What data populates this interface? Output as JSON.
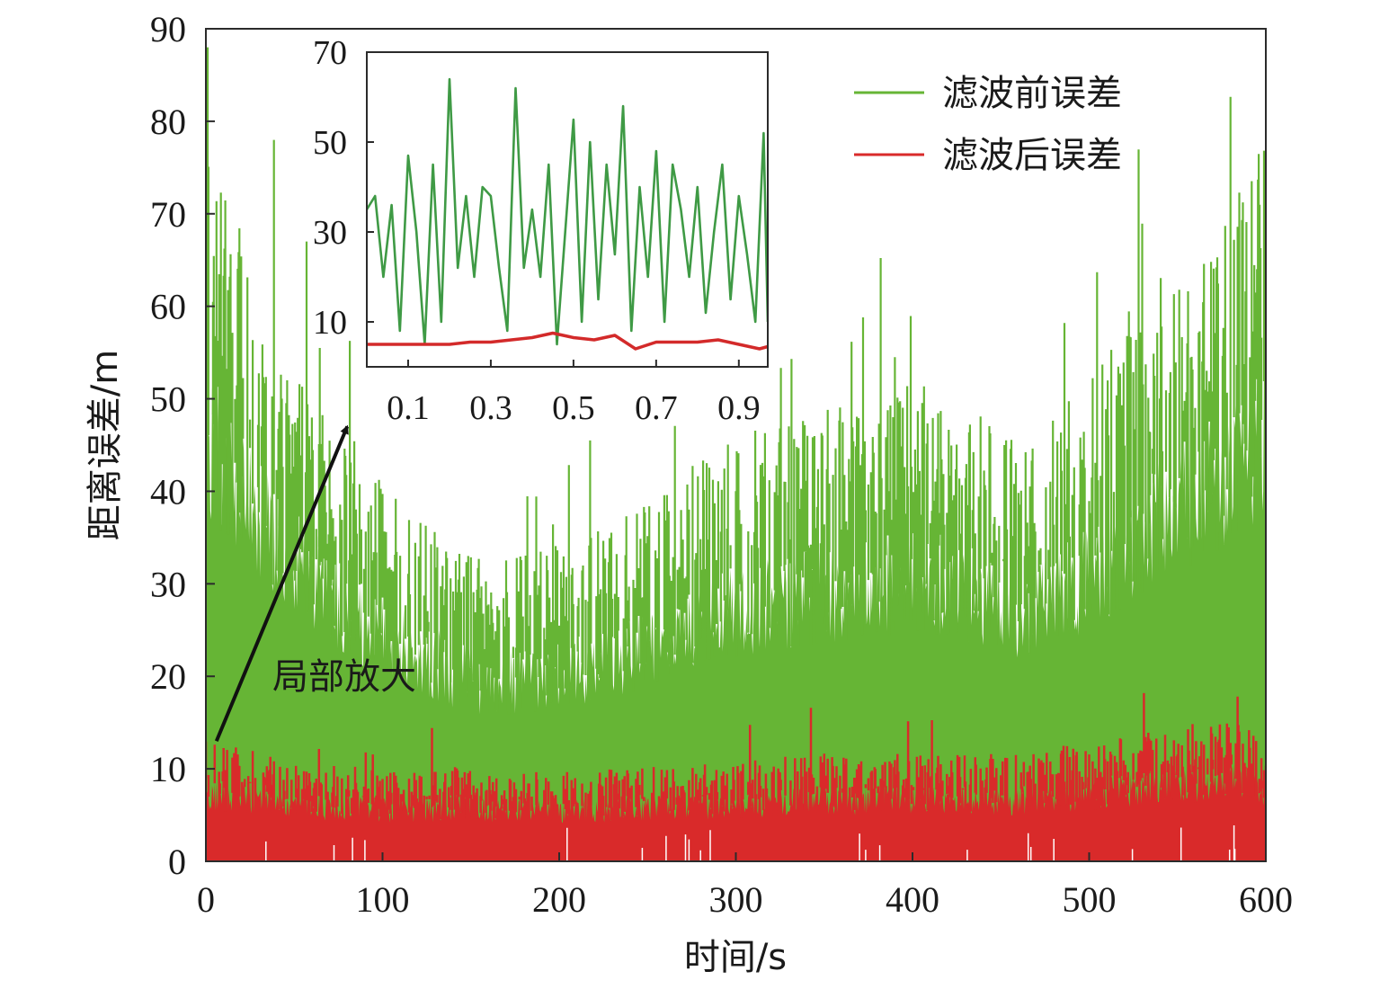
{
  "chart_data": [
    {
      "type": "bar",
      "title": "",
      "xlabel": "时间/s",
      "ylabel": "距离误差/m",
      "xlim": [
        0,
        600
      ],
      "ylim": [
        0,
        90
      ],
      "xticks": [
        0,
        100,
        200,
        300,
        400,
        500,
        600
      ],
      "yticks": [
        0,
        10,
        20,
        30,
        40,
        50,
        60,
        70,
        80,
        90
      ],
      "grid": false,
      "legend_position": "top-right",
      "series": [
        {
          "name": "滤波前误差",
          "color": "#66b535",
          "x": [
            0,
            20,
            40,
            60,
            80,
            100,
            120,
            140,
            160,
            180,
            200,
            220,
            240,
            260,
            280,
            300,
            320,
            340,
            360,
            380,
            400,
            420,
            440,
            460,
            480,
            500,
            520,
            540,
            560,
            580,
            600
          ],
          "envelope": [
            68,
            60,
            52,
            45,
            40,
            36,
            33,
            30,
            28,
            29,
            30,
            31,
            33,
            35,
            38,
            40,
            41,
            42,
            43,
            44,
            45,
            44,
            42,
            40,
            42,
            45,
            50,
            55,
            58,
            62,
            68
          ]
        },
        {
          "name": "滤波后误差",
          "color": "#d92a2a",
          "x": [
            0,
            20,
            40,
            60,
            80,
            100,
            120,
            140,
            160,
            180,
            200,
            220,
            240,
            260,
            280,
            300,
            320,
            340,
            360,
            380,
            400,
            420,
            440,
            460,
            480,
            500,
            520,
            540,
            560,
            580,
            600
          ],
          "envelope": [
            10,
            9.5,
            9,
            8,
            8,
            7.5,
            7.5,
            8,
            7.5,
            7.5,
            7.5,
            7.5,
            8,
            8,
            8,
            8.5,
            8.5,
            9,
            9,
            9,
            9,
            9,
            9,
            9,
            9.5,
            10,
            10.5,
            11,
            11.5,
            12,
            10
          ]
        }
      ],
      "annotations": [
        {
          "text": "局部放大",
          "arrow_from": [
            6,
            13
          ],
          "arrow_to": [
            80,
            47
          ]
        }
      ]
    },
    {
      "type": "line",
      "title": "",
      "xlim": [
        0,
        0.97
      ],
      "ylim": [
        0,
        70
      ],
      "xticks": [
        0.1,
        0.3,
        0.5,
        0.7,
        0.9
      ],
      "yticks": [
        10,
        30,
        50,
        70
      ],
      "series": [
        {
          "name": "滤波前误差",
          "color": "#3f9a45",
          "x": [
            0.0,
            0.02,
            0.04,
            0.06,
            0.08,
            0.1,
            0.12,
            0.14,
            0.16,
            0.18,
            0.2,
            0.22,
            0.24,
            0.26,
            0.28,
            0.3,
            0.32,
            0.34,
            0.36,
            0.38,
            0.4,
            0.42,
            0.44,
            0.46,
            0.48,
            0.5,
            0.52,
            0.54,
            0.56,
            0.58,
            0.6,
            0.62,
            0.64,
            0.66,
            0.68,
            0.7,
            0.72,
            0.74,
            0.76,
            0.78,
            0.8,
            0.82,
            0.84,
            0.86,
            0.88,
            0.9,
            0.92,
            0.94,
            0.96,
            0.97
          ],
          "y": [
            35,
            38,
            20,
            36,
            8,
            47,
            30,
            5,
            45,
            10,
            64,
            22,
            38,
            20,
            40,
            38,
            22,
            8,
            62,
            22,
            35,
            20,
            45,
            5,
            30,
            55,
            10,
            50,
            15,
            45,
            25,
            58,
            8,
            40,
            20,
            48,
            10,
            45,
            35,
            20,
            40,
            12,
            30,
            45,
            15,
            38,
            25,
            10,
            52,
            10
          ]
        },
        {
          "name": "滤波后误差",
          "color": "#d32a2a",
          "x": [
            0.0,
            0.05,
            0.1,
            0.15,
            0.2,
            0.25,
            0.3,
            0.35,
            0.4,
            0.45,
            0.5,
            0.55,
            0.6,
            0.65,
            0.7,
            0.75,
            0.8,
            0.85,
            0.9,
            0.95,
            0.97
          ],
          "y": [
            5,
            5,
            5,
            5,
            5,
            5.5,
            5.5,
            6,
            6.5,
            7.5,
            6.5,
            6,
            7,
            4,
            5.5,
            5.5,
            5.5,
            6,
            5,
            4,
            4.5
          ]
        }
      ]
    }
  ]
}
